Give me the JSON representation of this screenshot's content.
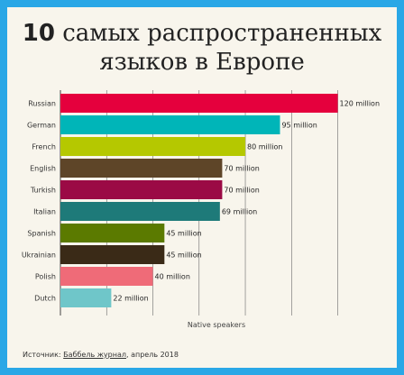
{
  "title": {
    "number": "10",
    "line1_rest": "самых распространенных",
    "line2": "языков в Европе"
  },
  "source": {
    "prefix": "Источник: ",
    "link": "Баббель журнал",
    "suffix": ", апрель 2018"
  },
  "colors": {
    "frame": "#2aa7e6",
    "background": "#f8f5ec",
    "grid": "#6a6a6a"
  },
  "chart_data": {
    "type": "bar",
    "orientation": "horizontal",
    "categories": [
      "Russian",
      "German",
      "French",
      "English",
      "Turkish",
      "Italian",
      "Spanish",
      "Ukrainian",
      "Polish",
      "Dutch"
    ],
    "values": [
      120,
      95,
      80,
      70,
      70,
      69,
      45,
      45,
      40,
      22
    ],
    "value_labels": [
      "120 million",
      "95 million",
      "80 million",
      "70 million",
      "70 million",
      "69 million",
      "45 million",
      "45 million",
      "40 million",
      "22 million"
    ],
    "colors": [
      "#e5003d",
      "#00b5b8",
      "#b5c800",
      "#5e4528",
      "#9b0a45",
      "#1e7a79",
      "#5b7a00",
      "#3a2a17",
      "#ef6b78",
      "#6fc6c9"
    ],
    "xlabel": "Native speakers",
    "xlim": [
      0,
      135
    ],
    "grid": true
  }
}
